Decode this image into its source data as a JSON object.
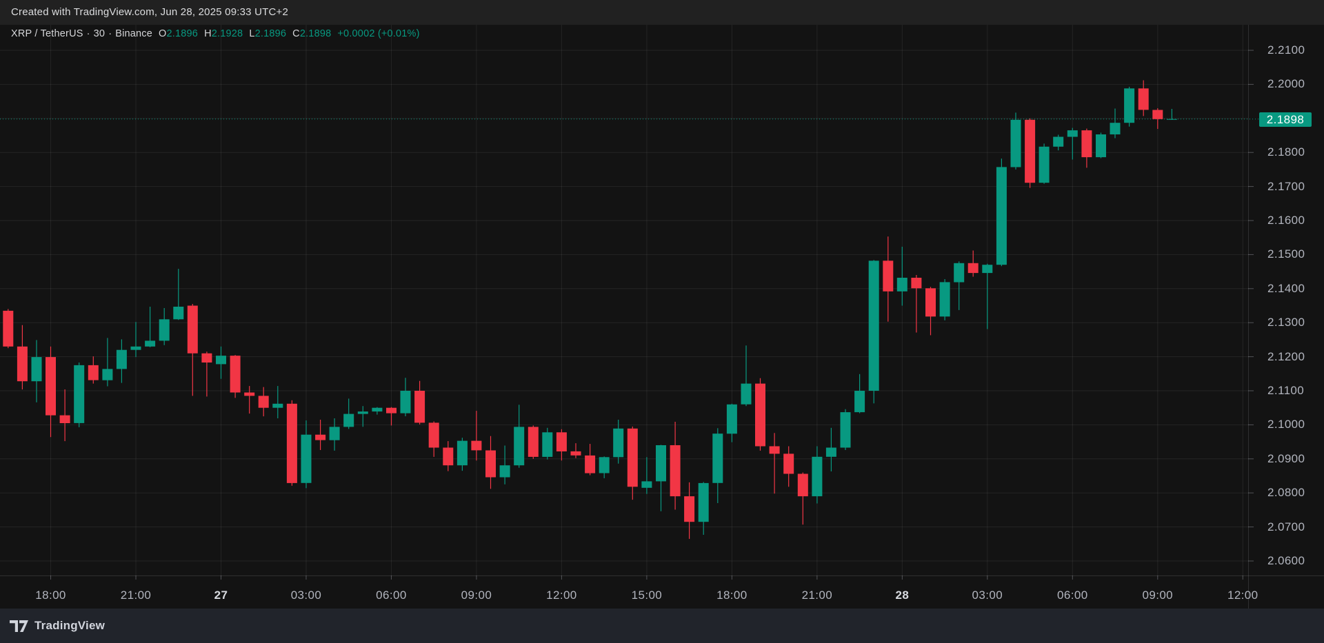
{
  "top_bar": {
    "created_with": "Created with TradingView.com, Jun 28, 2025 09:33 UTC+2"
  },
  "legend": {
    "symbol": "XRP / TetherUS",
    "separator": "·",
    "interval": "30",
    "exchange": "Binance",
    "ohlc": [
      {
        "label": "O",
        "value": "2.1896"
      },
      {
        "label": "H",
        "value": "2.1928"
      },
      {
        "label": "L",
        "value": "2.1896"
      },
      {
        "label": "C",
        "value": "2.1898"
      }
    ],
    "change": "+0.0002 (+0.01%)"
  },
  "price_axis": {
    "labels": [
      {
        "text": "2.2100",
        "price": 2.21
      },
      {
        "text": "2.2000",
        "price": 2.2
      },
      {
        "text": "2.1800",
        "price": 2.18
      },
      {
        "text": "2.1700",
        "price": 2.17
      },
      {
        "text": "2.1600",
        "price": 2.16
      },
      {
        "text": "2.1500",
        "price": 2.15
      },
      {
        "text": "2.1400",
        "price": 2.14
      },
      {
        "text": "2.1300",
        "price": 2.13
      },
      {
        "text": "2.1200",
        "price": 2.12
      },
      {
        "text": "2.1100",
        "price": 2.11
      },
      {
        "text": "2.1000",
        "price": 2.1
      },
      {
        "text": "2.0900",
        "price": 2.09
      },
      {
        "text": "2.0800",
        "price": 2.08
      },
      {
        "text": "2.0700",
        "price": 2.07
      },
      {
        "text": "2.0600",
        "price": 2.06
      }
    ],
    "last_price_badge": {
      "text": "2.1898",
      "price": 2.1898
    }
  },
  "time_axis": {
    "labels": [
      {
        "text": "18:00",
        "index": 3
      },
      {
        "text": "21:00",
        "index": 9
      },
      {
        "text": "27",
        "index": 15,
        "bold": true
      },
      {
        "text": "03:00",
        "index": 21
      },
      {
        "text": "06:00",
        "index": 27
      },
      {
        "text": "09:00",
        "index": 33
      },
      {
        "text": "12:00",
        "index": 39
      },
      {
        "text": "15:00",
        "index": 45
      },
      {
        "text": "18:00",
        "index": 51
      },
      {
        "text": "21:00",
        "index": 57
      },
      {
        "text": "28",
        "index": 63,
        "bold": true
      },
      {
        "text": "03:00",
        "index": 69
      },
      {
        "text": "06:00",
        "index": 75
      },
      {
        "text": "09:00",
        "index": 81
      },
      {
        "text": "12:00",
        "index": 87
      }
    ]
  },
  "footer": {
    "brand": "TradingView"
  },
  "colors": {
    "up": "#089981",
    "down": "#f23645",
    "background": "#131313",
    "topbar_bg": "#212121",
    "footer_bg": "#21242b",
    "grid": "rgba(242,242,247,0.08)",
    "axis_border": "rgba(242,242,247,0.13)",
    "tick": "rgba(178,181,190,0.4)",
    "axis_text": "#b2b5be",
    "last_price_line": "#089981"
  },
  "chart_data": {
    "type": "candlestick",
    "symbol": "XRP / TetherUS",
    "exchange": "Binance",
    "interval_minutes": 30,
    "ylim": [
      2.0557,
      2.2175
    ],
    "grid_prices": [
      2.21,
      2.2,
      2.19,
      2.18,
      2.17,
      2.16,
      2.15,
      2.14,
      2.13,
      2.12,
      2.11,
      2.1,
      2.09,
      2.08,
      2.07,
      2.06
    ],
    "last_price": 2.1898,
    "columns": [
      "time",
      "open",
      "high",
      "low",
      "close"
    ],
    "candles": [
      [
        "Jun 26 16:30",
        2.1335,
        2.134,
        2.1225,
        2.123
      ],
      [
        "Jun 26 17:00",
        2.123,
        2.1293,
        2.1104,
        2.1128
      ],
      [
        "Jun 26 17:30",
        2.1128,
        2.1249,
        2.1066,
        2.1199
      ],
      [
        "Jun 26 18:00",
        2.1199,
        2.123,
        2.0964,
        2.1028
      ],
      [
        "Jun 26 18:30",
        2.1028,
        2.1104,
        2.0952,
        2.1005
      ],
      [
        "Jun 26 19:00",
        2.1005,
        2.1183,
        2.0993,
        2.1175
      ],
      [
        "Jun 26 19:30",
        2.1175,
        2.1201,
        2.1121,
        2.1131
      ],
      [
        "Jun 26 20:00",
        2.1131,
        2.1255,
        2.1113,
        2.1164
      ],
      [
        "Jun 26 20:30",
        2.1164,
        2.1251,
        2.1123,
        2.122
      ],
      [
        "Jun 26 21:00",
        2.122,
        2.1302,
        2.1199,
        2.123
      ],
      [
        "Jun 26 21:30",
        2.123,
        2.1347,
        2.1228,
        2.1247
      ],
      [
        "Jun 26 22:00",
        2.1247,
        2.1343,
        2.1234,
        2.131
      ],
      [
        "Jun 26 22:30",
        2.131,
        2.1458,
        2.1308,
        2.1347
      ],
      [
        "Jun 26 23:00",
        2.135,
        2.1355,
        2.1085,
        2.121
      ],
      [
        "Jun 26 23:30",
        2.121,
        2.1215,
        2.1083,
        2.1183
      ],
      [
        "Jun 27 00:00",
        2.1178,
        2.123,
        2.1135,
        2.1203
      ],
      [
        "Jun 27 00:30",
        2.1203,
        2.1205,
        2.1079,
        2.1095
      ],
      [
        "Jun 27 01:00",
        2.1095,
        2.1114,
        2.1033,
        2.1085
      ],
      [
        "Jun 27 01:30",
        2.1085,
        2.1111,
        2.1025,
        2.105
      ],
      [
        "Jun 27 02:00",
        2.105,
        2.1114,
        2.1019,
        2.1062
      ],
      [
        "Jun 27 02:30",
        2.1062,
        2.1072,
        2.0821,
        2.0829
      ],
      [
        "Jun 27 03:00",
        2.0829,
        2.1013,
        2.0814,
        2.0971
      ],
      [
        "Jun 27 03:30",
        2.0971,
        2.1015,
        2.0926,
        2.0955
      ],
      [
        "Jun 27 04:00",
        2.0955,
        2.1019,
        2.0924,
        2.0994
      ],
      [
        "Jun 27 04:30",
        2.0994,
        2.1077,
        2.0988,
        2.1032
      ],
      [
        "Jun 27 05:00",
        2.1032,
        2.1055,
        2.0994,
        2.1039
      ],
      [
        "Jun 27 05:30",
        2.1039,
        2.1052,
        2.103,
        2.105
      ],
      [
        "Jun 27 06:00",
        2.105,
        2.1052,
        2.0998,
        2.1034
      ],
      [
        "Jun 27 06:30",
        2.1034,
        2.1138,
        2.1025,
        2.11
      ],
      [
        "Jun 27 07:00",
        2.11,
        2.1129,
        2.1001,
        2.1006
      ],
      [
        "Jun 27 07:30",
        2.1006,
        2.101,
        2.0906,
        2.0933
      ],
      [
        "Jun 27 08:00",
        2.0933,
        2.0952,
        2.0864,
        2.0881
      ],
      [
        "Jun 27 08:30",
        2.0881,
        2.0962,
        2.0865,
        2.0953
      ],
      [
        "Jun 27 09:00",
        2.0953,
        2.1041,
        2.0895,
        2.0925
      ],
      [
        "Jun 27 09:30",
        2.0925,
        2.0967,
        2.0812,
        2.0846
      ],
      [
        "Jun 27 10:00",
        2.0846,
        2.0939,
        2.0825,
        2.0881
      ],
      [
        "Jun 27 10:30",
        2.0881,
        2.1059,
        2.0874,
        2.0994
      ],
      [
        "Jun 27 11:00",
        2.0994,
        2.0998,
        2.09,
        2.0906
      ],
      [
        "Jun 27 11:30",
        2.0906,
        2.0991,
        2.0898,
        2.0978
      ],
      [
        "Jun 27 12:00",
        2.0978,
        2.0987,
        2.0895,
        2.0922
      ],
      [
        "Jun 27 12:30",
        2.0922,
        2.0946,
        2.0902,
        2.091
      ],
      [
        "Jun 27 13:00",
        2.091,
        2.0944,
        2.0852,
        2.0858
      ],
      [
        "Jun 27 13:30",
        2.0858,
        2.0907,
        2.0843,
        2.0905
      ],
      [
        "Jun 27 14:00",
        2.0905,
        2.1015,
        2.0886,
        2.0989
      ],
      [
        "Jun 27 14:30",
        2.0989,
        2.0995,
        2.078,
        2.0818
      ],
      [
        "Jun 27 15:00",
        2.0815,
        2.0905,
        2.0797,
        2.0834
      ],
      [
        "Jun 27 15:30",
        2.0834,
        2.0941,
        2.0746,
        2.094
      ],
      [
        "Jun 27 16:00",
        2.094,
        2.1009,
        2.0751,
        2.079
      ],
      [
        "Jun 27 16:30",
        2.079,
        2.0831,
        2.0665,
        2.0715
      ],
      [
        "Jun 27 17:00",
        2.0715,
        2.0832,
        2.0677,
        2.0829
      ],
      [
        "Jun 27 17:30",
        2.0829,
        2.099,
        2.077,
        2.0974
      ],
      [
        "Jun 27 18:00",
        2.0974,
        2.1062,
        2.0949,
        2.106
      ],
      [
        "Jun 27 18:30",
        2.106,
        2.1233,
        2.1055,
        2.1121
      ],
      [
        "Jun 27 19:00",
        2.1121,
        2.1137,
        2.0924,
        2.0937
      ],
      [
        "Jun 27 19:30",
        2.0937,
        2.0976,
        2.0798,
        2.0915
      ],
      [
        "Jun 27 20:00",
        2.0915,
        2.0937,
        2.0818,
        2.0856
      ],
      [
        "Jun 27 20:30",
        2.0856,
        2.086,
        2.0707,
        2.079
      ],
      [
        "Jun 27 21:00",
        2.079,
        2.0937,
        2.0769,
        2.0906
      ],
      [
        "Jun 27 21:30",
        2.0906,
        2.0991,
        2.0863,
        2.0933
      ],
      [
        "Jun 27 22:00",
        2.0933,
        2.1046,
        2.0926,
        2.1037
      ],
      [
        "Jun 27 22:30",
        2.1037,
        2.1149,
        2.1034,
        2.11
      ],
      [
        "Jun 27 23:00",
        2.11,
        2.1484,
        2.1063,
        2.1482
      ],
      [
        "Jun 27 23:30",
        2.1482,
        2.1553,
        2.1303,
        2.1392
      ],
      [
        "Jun 28 00:00",
        2.1392,
        2.1523,
        2.135,
        2.1432
      ],
      [
        "Jun 28 00:30",
        2.1432,
        2.144,
        2.1271,
        2.1401
      ],
      [
        "Jun 28 01:00",
        2.1401,
        2.1405,
        2.1263,
        2.1318
      ],
      [
        "Jun 28 01:30",
        2.1318,
        2.1428,
        2.1307,
        2.1419
      ],
      [
        "Jun 28 02:00",
        2.1419,
        2.148,
        2.1337,
        2.1475
      ],
      [
        "Jun 28 02:30",
        2.1475,
        2.1512,
        2.1435,
        2.1446
      ],
      [
        "Jun 28 03:00",
        2.1446,
        2.1473,
        2.1281,
        2.147
      ],
      [
        "Jun 28 03:30",
        2.147,
        2.1782,
        2.1466,
        2.1757
      ],
      [
        "Jun 28 04:00",
        2.1757,
        2.1917,
        2.175,
        2.1896
      ],
      [
        "Jun 28 04:30",
        2.1896,
        2.19,
        2.1696,
        2.1711
      ],
      [
        "Jun 28 05:00",
        2.1711,
        2.1826,
        2.1708,
        2.1817
      ],
      [
        "Jun 28 05:30",
        2.1817,
        2.1852,
        2.1806,
        2.1846
      ],
      [
        "Jun 28 06:00",
        2.1846,
        2.1872,
        2.1779,
        2.1865
      ],
      [
        "Jun 28 06:30",
        2.1865,
        2.187,
        2.1755,
        2.1786
      ],
      [
        "Jun 28 07:00",
        2.1786,
        2.1858,
        2.1783,
        2.1853
      ],
      [
        "Jun 28 07:30",
        2.1853,
        2.1929,
        2.1842,
        2.1887
      ],
      [
        "Jun 28 08:00",
        2.1887,
        2.1993,
        2.1876,
        2.1988
      ],
      [
        "Jun 28 08:30",
        2.1988,
        2.2012,
        2.1907,
        2.1925
      ],
      [
        "Jun 28 09:00",
        2.1925,
        2.193,
        2.1869,
        2.1898
      ],
      [
        "Jun 28 09:30",
        2.1896,
        2.1928,
        2.1896,
        2.1898
      ]
    ]
  }
}
